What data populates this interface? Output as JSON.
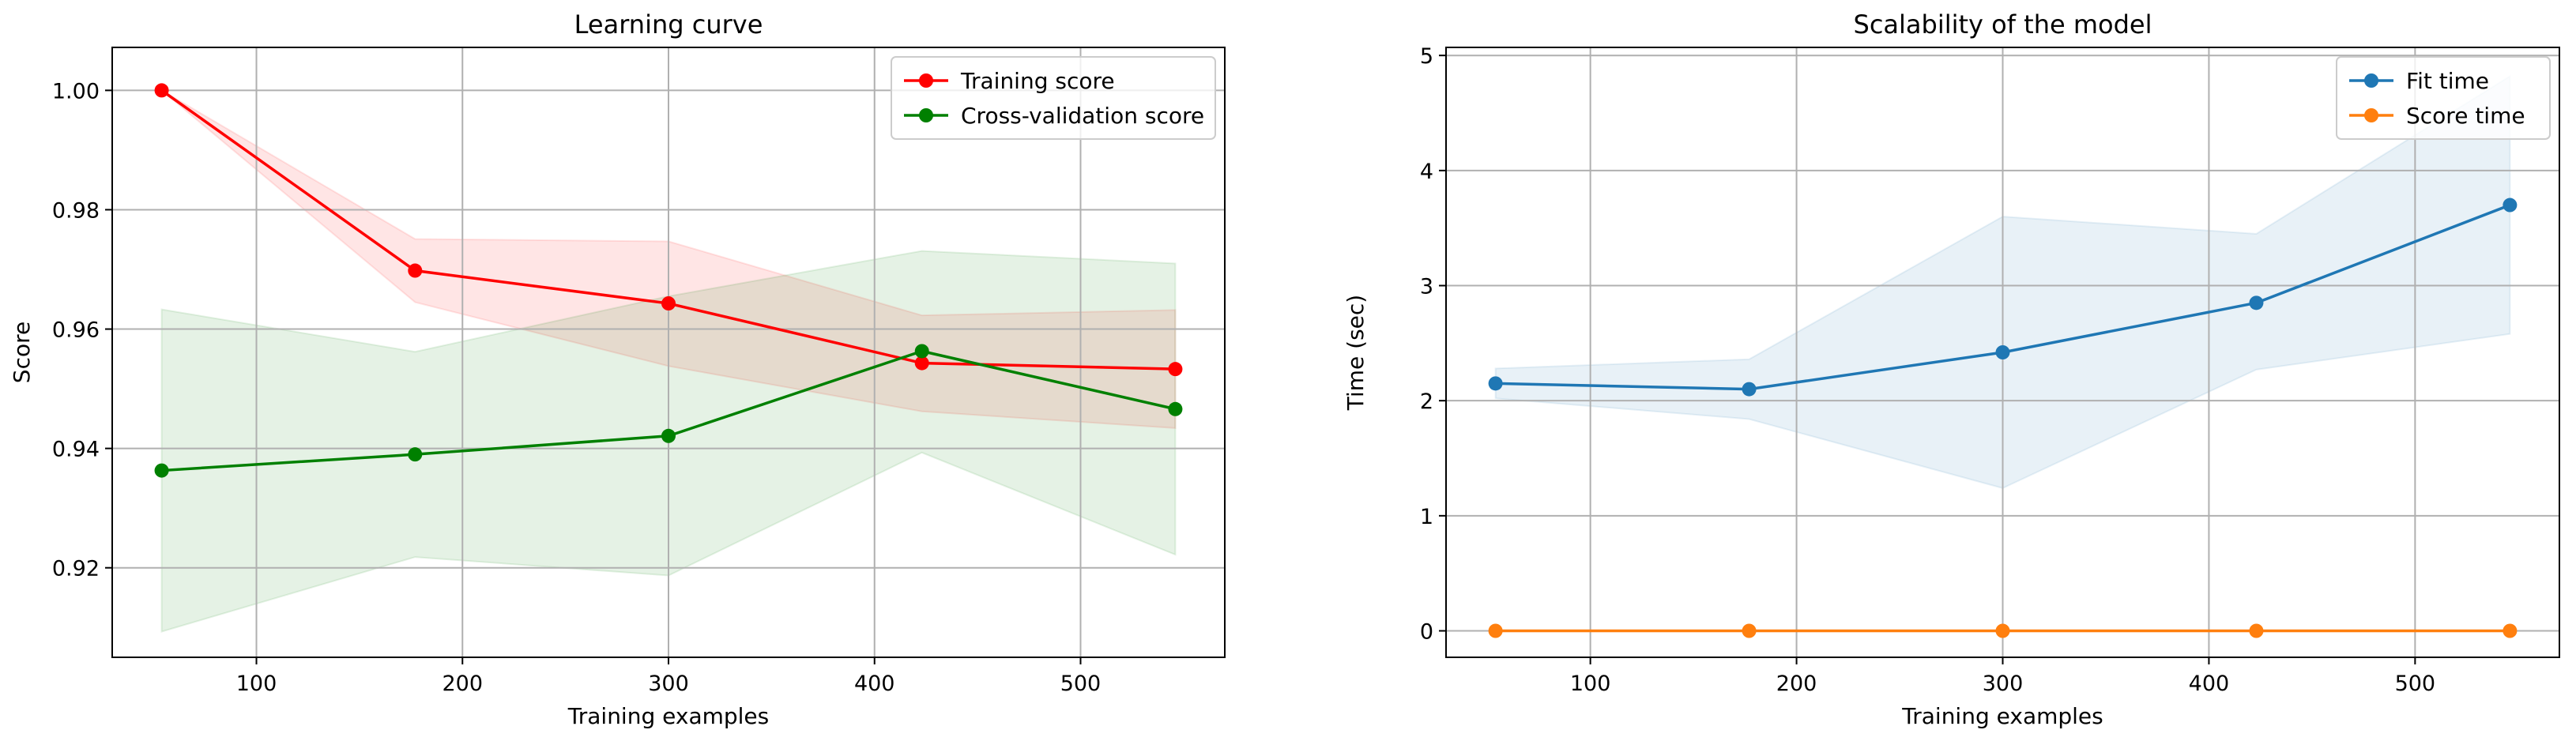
{
  "chart_data": [
    {
      "type": "line",
      "title": "Learning curve",
      "xlabel": "Training examples",
      "ylabel": "Score",
      "xlim": [
        30,
        570
      ],
      "ylim": [
        0.905,
        1.0072
      ],
      "xticks": [
        100,
        200,
        300,
        400,
        500
      ],
      "yticks": [
        0.92,
        0.94,
        0.96,
        0.98,
        1.0
      ],
      "ytick_labels": [
        "0.92",
        "0.94",
        "0.96",
        "0.98",
        "1.00"
      ],
      "grid": true,
      "legend_position": "top-right",
      "x": [
        54,
        177,
        300,
        423,
        546
      ],
      "series": [
        {
          "name": "Training score",
          "color": "#ff0000",
          "band_color": "#ff0000",
          "values": [
            1.0,
            0.9698,
            0.9643,
            0.9543,
            0.9533
          ],
          "band_low": [
            1.0,
            0.9645,
            0.9538,
            0.9462,
            0.9434
          ],
          "band_high": [
            1.0,
            0.9751,
            0.9747,
            0.9623,
            0.9632
          ]
        },
        {
          "name": "Cross-validation score",
          "color": "#008000",
          "band_color": "#008000",
          "values": [
            0.9363,
            0.939,
            0.9421,
            0.9563,
            0.9466
          ],
          "band_low": [
            0.9093,
            0.9218,
            0.9187,
            0.9393,
            0.9222
          ],
          "band_high": [
            0.9633,
            0.9562,
            0.9655,
            0.9731,
            0.971
          ]
        }
      ]
    },
    {
      "type": "line",
      "title": "Scalability of the model",
      "xlabel": "Training examples",
      "ylabel": "Time (sec)",
      "xlim": [
        30,
        570
      ],
      "ylim": [
        -0.23,
        5.07
      ],
      "xticks": [
        100,
        200,
        300,
        400,
        500
      ],
      "yticks": [
        0,
        1,
        2,
        3,
        4,
        5
      ],
      "ytick_labels": [
        "0",
        "1",
        "2",
        "3",
        "4",
        "5"
      ],
      "grid": true,
      "legend_position": "top-right",
      "x": [
        54,
        177,
        300,
        423,
        546
      ],
      "series": [
        {
          "name": "Fit time",
          "color": "#1f77b4",
          "band_color": "#1f77b4",
          "values": [
            2.15,
            2.1,
            2.42,
            2.85,
            3.7
          ],
          "band_low": [
            2.02,
            1.84,
            1.24,
            2.27,
            2.58
          ],
          "band_high": [
            2.28,
            2.36,
            3.6,
            3.45,
            4.82
          ]
        },
        {
          "name": "Score time",
          "color": "#ff7f0e",
          "band_color": "#ff7f0e",
          "values": [
            0.0,
            0.0,
            0.0,
            0.0,
            0.0
          ],
          "band_low": [
            0.0,
            0.0,
            0.0,
            0.0,
            0.0
          ],
          "band_high": [
            0.0,
            0.0,
            0.0,
            0.0,
            0.0
          ]
        }
      ]
    }
  ]
}
